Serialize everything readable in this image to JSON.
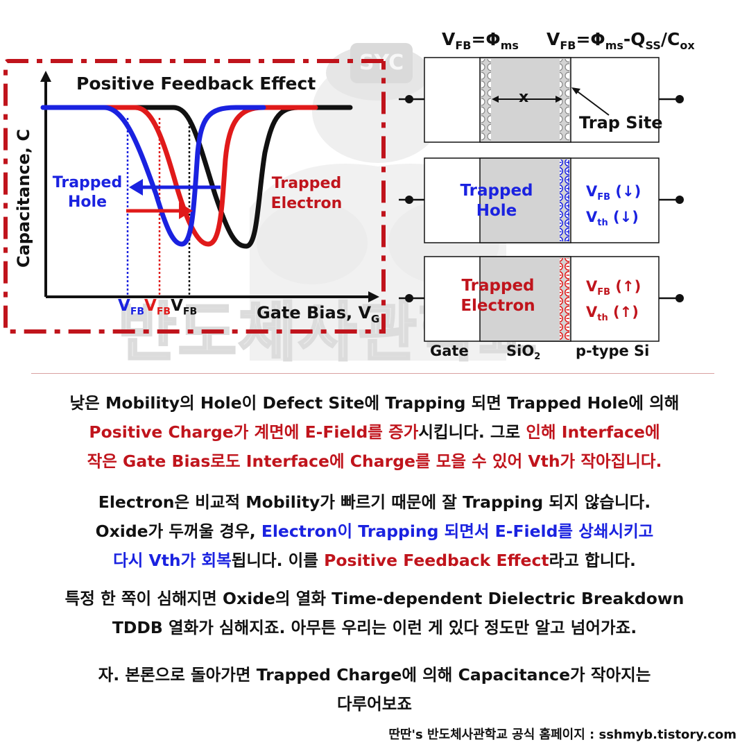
{
  "watermark": {
    "badge_text": "SYC",
    "bottom_text": "반도체사관학교"
  },
  "graph": {
    "title": "Positive Feedback Effect",
    "y_axis_label": "Capacitance, C",
    "x_axis_label": "Gate Bias, V",
    "x_axis_sub": "G",
    "trapped_hole_line1": "Trapped",
    "trapped_hole_line2": "Hole",
    "trapped_electron_line1": "Trapped",
    "trapped_electron_line2": "Electron",
    "vfb_labels": [
      {
        "main": "V",
        "sub": "FB",
        "color": "#1a22e0"
      },
      {
        "main": "V",
        "sub": "FB",
        "color": "#e01a1a"
      },
      {
        "main": "V",
        "sub": "FB",
        "color": "#111111"
      }
    ],
    "colors": {
      "hole": "#1a22e0",
      "electron": "#e01a1a",
      "reference": "#111111",
      "frame": "#c0141c"
    }
  },
  "mos_diagram": {
    "header_left": {
      "v": "V",
      "sub": "FB",
      "eq": "=Φ",
      "sub2": "ms"
    },
    "header_right": {
      "v": "V",
      "sub": "FB",
      "eq": "=Φ",
      "sub2": "ms",
      "minus": "-Q",
      "sub3": "SS",
      "slash": "/C",
      "sub4": "ox"
    },
    "trap_site_label": "Trap Site",
    "x_label": "x",
    "hole_box": {
      "line1": "Trapped",
      "line2": "Hole",
      "vfb": "V",
      "vfb_sub": "FB",
      "vfb_arrow": " (↓)",
      "vth": "V",
      "vth_sub": "th",
      "vth_arrow": " (↓)"
    },
    "electron_box": {
      "line1": "Trapped",
      "line2": "Electron",
      "vfb": "V",
      "vfb_sub": "FB",
      "vfb_arrow": " (↑)",
      "vth": "V",
      "vth_sub": "th",
      "vth_arrow": " (↑)"
    },
    "layers": {
      "gate": "Gate",
      "oxide": "SiO",
      "oxide_sub": "2",
      "substrate": "p-type Si"
    }
  },
  "paragraphs": {
    "p1_l1": "낮은 Mobility의 Hole이 Defect Site에 Trapping 되면 Trapped Hole에 의해",
    "p1_l2_red": "Positive Charge가 계면에 E-Field를 증가",
    "p1_l2_black": "시킵니다. 그로 ",
    "p1_l2_red2": "인해 Interface에",
    "p1_l3_red": "작은 Gate Bias로도 Interface에 Charge를 모을 수 있어 Vth가 작아집니다.",
    "p2_l1": "Electron은 비교적 Mobility가 빠르기 때문에 잘 Trapping 되지 않습니다.",
    "p2_l2_black": "Oxide가 두꺼울 경우, ",
    "p2_l2_blue": "Electron이 Trapping 되면서 E-Field를 상쇄시키고",
    "p2_l3_blue": "다시 Vth가 회복",
    "p2_l3_black": "됩니다. 이를 ",
    "p2_l3_red": "Positive Feedback Effect",
    "p2_l3_black2": "라고 합니다.",
    "p3_l1": "특정 한 쪽이 심해지면 Oxide의 열화 Time-dependent Dielectric Breakdown",
    "p3_l2": "TDDB 열화가 심해지죠. 아무튼 우리는 이런 게 있다 정도만 알고 넘어가죠.",
    "p4_l1": "자. 본론으로 돌아가면 Trapped Charge에 의해 Capacitance가 작아지는",
    "p4_l2": "다루어보죠"
  },
  "footer": "딴딴's 반도체사관학교 공식 홈페이지 : sshmyb.tistory.com"
}
